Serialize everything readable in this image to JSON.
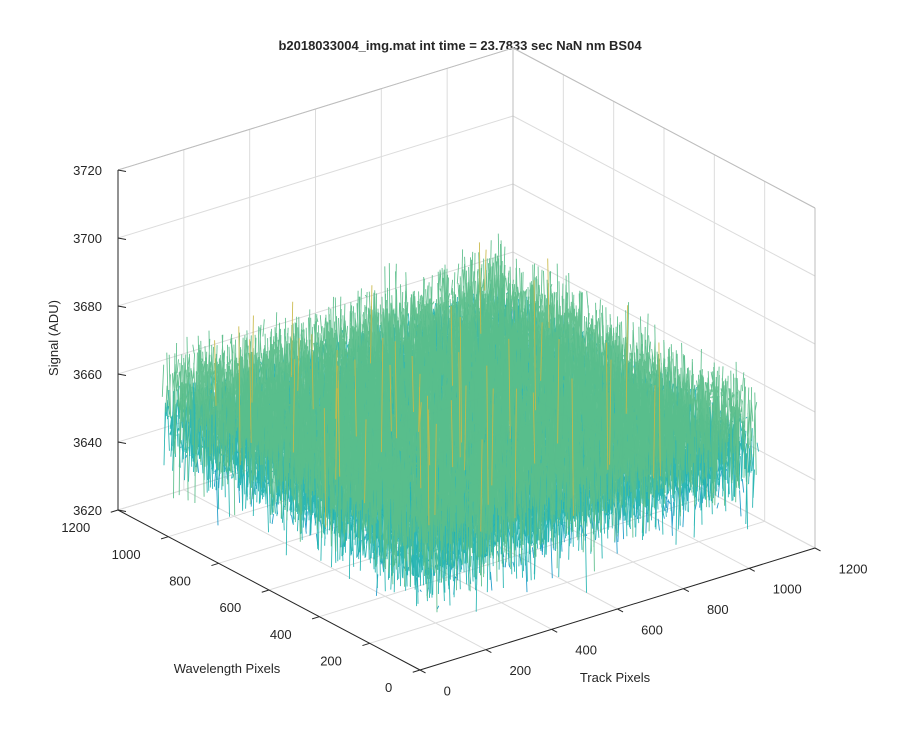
{
  "chart_data": {
    "type": "surface",
    "title": "b2018033004_img.mat int time = 23.7833 sec  NaN nm BS04",
    "xlabel": "Track Pixels",
    "ylabel": "Wavelength Pixels",
    "zlabel": "Signal (ADU)",
    "xlim": [
      0,
      1200
    ],
    "ylim": [
      0,
      1200
    ],
    "zlim": [
      3620,
      3720
    ],
    "x_ticks": [
      0,
      200,
      400,
      600,
      800,
      1000,
      1200
    ],
    "y_ticks": [
      0,
      200,
      400,
      600,
      800,
      1000,
      1200
    ],
    "z_ticks": [
      3620,
      3640,
      3660,
      3680,
      3700,
      3720
    ],
    "x_extent": [
      0,
      1024
    ],
    "y_extent": [
      0,
      1024
    ],
    "signal_mean": 3656,
    "signal_range": [
      3616,
      3712
    ],
    "grid": true,
    "colormap": [
      "#0072BD",
      "#1A99C8",
      "#22B3B0",
      "#5BBE8A",
      "#C9B848",
      "#EDB12E"
    ]
  }
}
